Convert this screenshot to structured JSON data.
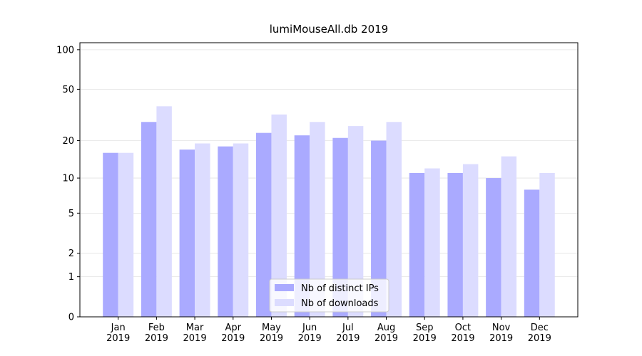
{
  "chart_data": {
    "type": "bar",
    "title": "lumiMouseAll.db 2019",
    "categories": [
      "Jan 2019",
      "Feb 2019",
      "Mar 2019",
      "Apr 2019",
      "May 2019",
      "Jun 2019",
      "Jul 2019",
      "Aug 2019",
      "Sep 2019",
      "Oct 2019",
      "Nov 2019",
      "Dec 2019"
    ],
    "series": [
      {
        "name": "Nb of distinct IPs",
        "color": "#aaaaff",
        "values": [
          16,
          28,
          17,
          18,
          23,
          22,
          21,
          20,
          11,
          11,
          10,
          8
        ]
      },
      {
        "name": "Nb of downloads",
        "color": "#dcdcff",
        "values": [
          16,
          37,
          19,
          19,
          32,
          28,
          26,
          28,
          12,
          13,
          15,
          11
        ]
      }
    ],
    "yscale": "log1p",
    "ylim": [
      0,
      113
    ],
    "yticks": [
      0,
      1,
      2,
      5,
      10,
      20,
      50,
      100
    ],
    "grid": true,
    "legend": "lower center"
  }
}
